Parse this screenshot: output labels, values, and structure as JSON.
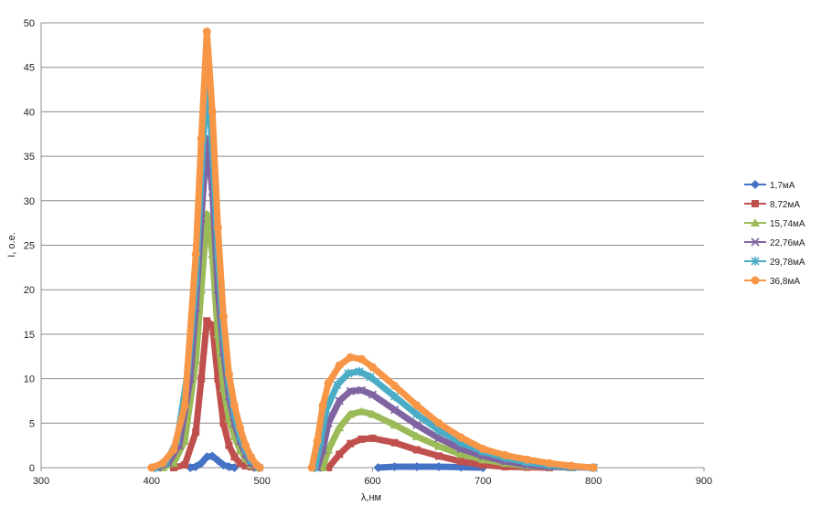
{
  "chart_data": {
    "type": "line",
    "title": "",
    "xlabel": "λ,нм",
    "ylabel": "I, о.е.",
    "xlim": [
      300,
      900
    ],
    "ylim": [
      0,
      50
    ],
    "x_ticks": [
      300,
      400,
      500,
      600,
      700,
      800,
      900
    ],
    "y_ticks": [
      0,
      5,
      10,
      15,
      20,
      25,
      30,
      35,
      40,
      45,
      50
    ],
    "x_tick_labels": [
      "300",
      "400",
      "500",
      "600",
      "700",
      "800",
      "900"
    ],
    "y_tick_labels": [
      "0",
      "5",
      "10",
      "15",
      "20",
      "25",
      "30",
      "35",
      "40",
      "45",
      "50"
    ],
    "grid": true,
    "legend_position": "right",
    "series": [
      {
        "name": "1,7мА",
        "color": "#4472C4",
        "marker": "diamond",
        "x": [
          435,
          440,
          445,
          450,
          455,
          460,
          465,
          470,
          475,
          605,
          620,
          640,
          660,
          680,
          700
        ],
        "y": [
          0,
          0.1,
          0.5,
          1.2,
          1.3,
          0.8,
          0.3,
          0.1,
          0,
          0,
          0.1,
          0.1,
          0.1,
          0.05,
          0
        ]
      },
      {
        "name": "8,72мА",
        "color": "#C0504D",
        "marker": "square",
        "x": [
          420,
          430,
          440,
          445,
          450,
          455,
          460,
          465,
          470,
          475,
          480,
          485,
          490,
          495,
          560,
          570,
          580,
          590,
          600,
          620,
          640,
          660,
          680,
          700,
          720,
          740,
          760
        ],
        "y": [
          0,
          0.3,
          4,
          10,
          16.5,
          16,
          10,
          5,
          2.5,
          1.2,
          0.5,
          0.2,
          0.1,
          0,
          0,
          1.5,
          2.7,
          3.2,
          3.3,
          2.8,
          2,
          1.3,
          0.7,
          0.3,
          0.1,
          0.05,
          0
        ]
      },
      {
        "name": "15,74мА",
        "color": "#9BBB59",
        "marker": "triangle",
        "x": [
          410,
          420,
          430,
          440,
          445,
          450,
          455,
          460,
          465,
          470,
          475,
          480,
          485,
          490,
          495,
          555,
          560,
          570,
          580,
          590,
          600,
          620,
          640,
          660,
          680,
          700,
          720,
          740,
          760,
          780
        ],
        "y": [
          0,
          0.5,
          3,
          12,
          20,
          28.5,
          24,
          15,
          9,
          5.5,
          3.5,
          2,
          1,
          0.3,
          0,
          0,
          2,
          4.5,
          6,
          6.3,
          6,
          4.8,
          3.5,
          2.4,
          1.5,
          0.9,
          0.5,
          0.2,
          0.1,
          0
        ]
      },
      {
        "name": "22,76мА",
        "color": "#8064A2",
        "marker": "x",
        "x": [
          405,
          415,
          425,
          435,
          440,
          445,
          450,
          455,
          460,
          465,
          470,
          475,
          480,
          485,
          490,
          495,
          550,
          555,
          560,
          570,
          580,
          590,
          600,
          620,
          640,
          660,
          680,
          700,
          720,
          740,
          760,
          780,
          800
        ],
        "y": [
          0,
          0.5,
          2.5,
          10,
          18,
          28,
          37,
          31,
          20,
          13,
          8,
          5,
          3,
          1.5,
          0.5,
          0,
          0,
          2,
          5,
          7.5,
          8.6,
          8.7,
          8.2,
          6.5,
          4.8,
          3.3,
          2.1,
          1.3,
          0.7,
          0.3,
          0.1,
          0.05,
          0
        ]
      },
      {
        "name": "29,78мА",
        "color": "#4BACC6",
        "marker": "star",
        "x": [
          403,
          413,
          423,
          433,
          440,
          445,
          450,
          455,
          460,
          465,
          470,
          475,
          480,
          485,
          490,
          497,
          548,
          553,
          558,
          568,
          578,
          588,
          598,
          620,
          640,
          660,
          680,
          700,
          720,
          740,
          760,
          780,
          800
        ],
        "y": [
          0,
          0.6,
          3,
          11,
          21,
          33,
          44,
          36,
          24,
          15,
          9.5,
          6,
          3.5,
          2,
          0.8,
          0,
          0,
          3,
          6.5,
          9.3,
          10.6,
          10.8,
          10.2,
          8,
          6,
          4.2,
          2.8,
          1.8,
          1.1,
          0.6,
          0.3,
          0.1,
          0
        ]
      },
      {
        "name": "36,8мА",
        "color": "#F79646",
        "marker": "circle",
        "x": [
          400,
          410,
          420,
          430,
          440,
          445,
          450,
          455,
          460,
          465,
          470,
          475,
          480,
          485,
          490,
          495,
          498,
          545,
          550,
          555,
          560,
          570,
          580,
          590,
          600,
          620,
          640,
          660,
          680,
          700,
          720,
          740,
          760,
          780,
          800
        ],
        "y": [
          0,
          0.5,
          2,
          7,
          24,
          37,
          49,
          40,
          27,
          17,
          10.5,
          7,
          4.5,
          2.5,
          1.2,
          0.3,
          0,
          0,
          3,
          7,
          9.5,
          11.5,
          12.4,
          12.2,
          11.3,
          9.2,
          7,
          5,
          3.4,
          2.1,
          1.4,
          0.9,
          0.5,
          0.2,
          0
        ]
      }
    ]
  }
}
